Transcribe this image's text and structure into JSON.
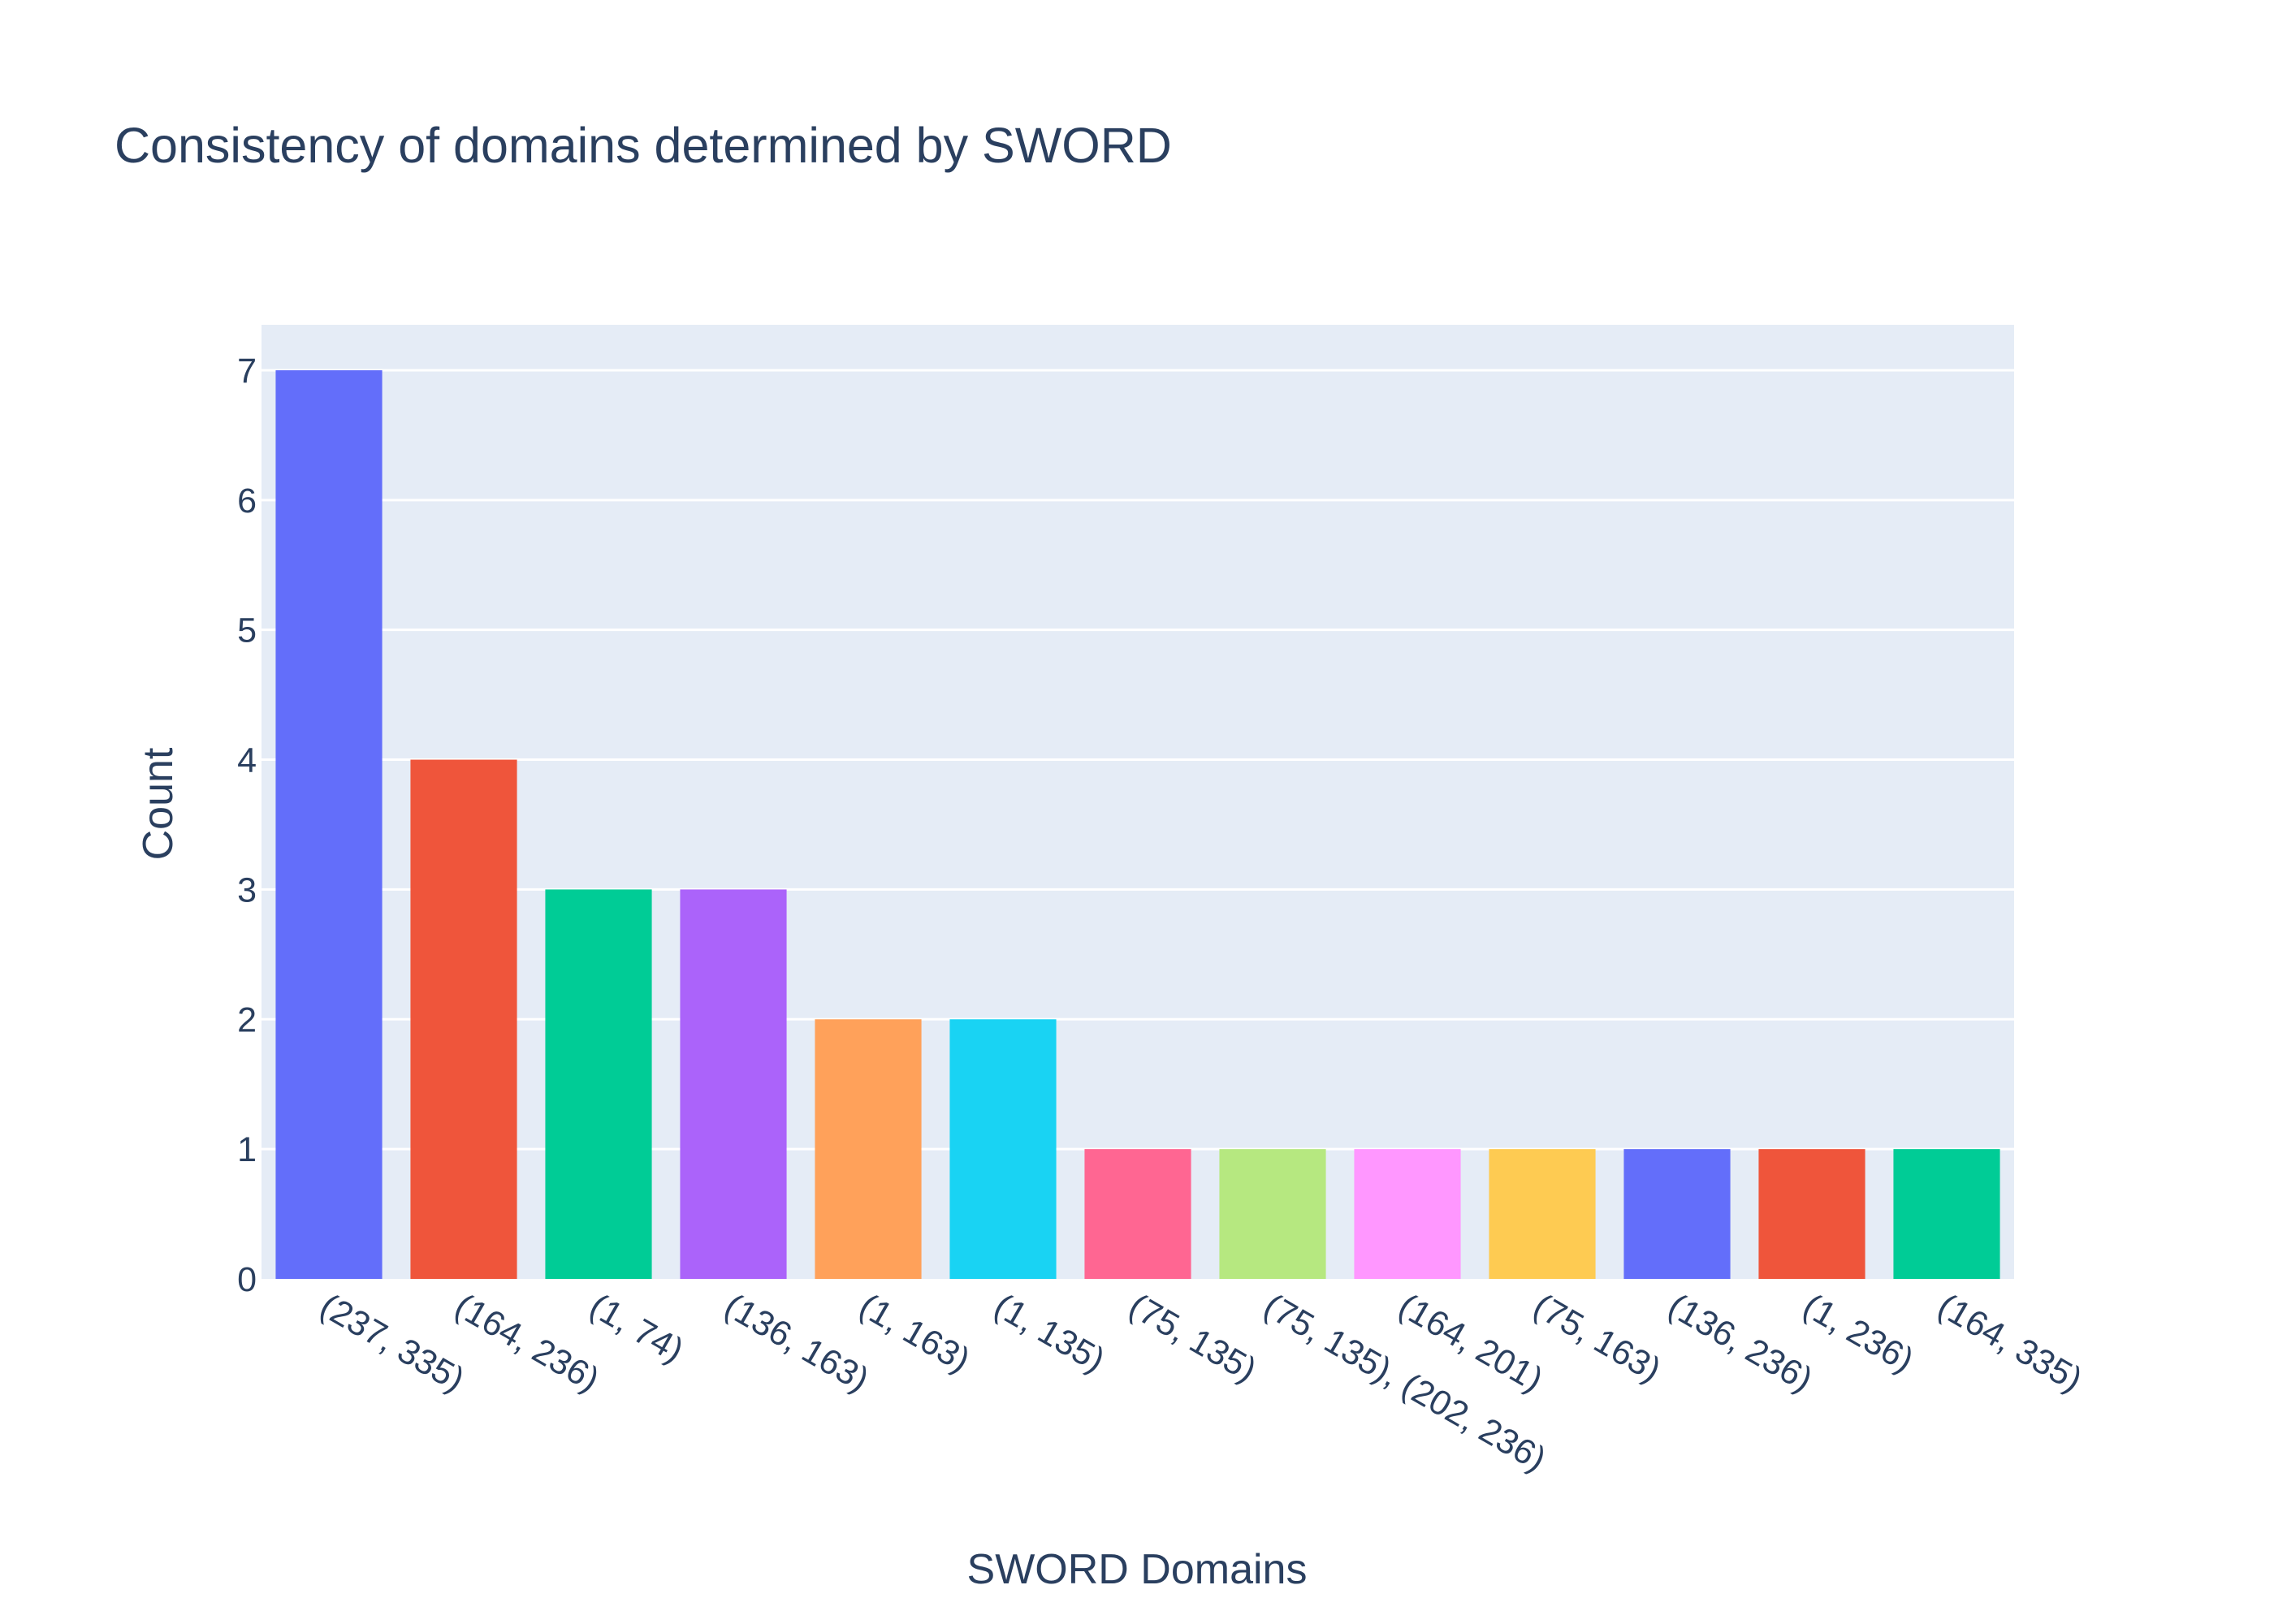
{
  "chart_data": {
    "type": "bar",
    "title": "Consistency of domains determined by SWORD",
    "xlabel": "SWORD Domains",
    "ylabel": "Count",
    "categories": [
      "(237, 335)",
      "(164, 236)",
      "(1, 74)",
      "(136, 163)",
      "(1, 163)",
      "(1, 135)",
      "(75, 135)",
      "(75, 135), (202, 236)",
      "(164, 201)",
      "(75, 163)",
      "(136, 236)",
      "(1, 236)",
      "(164, 335)"
    ],
    "values": [
      7,
      4,
      3,
      3,
      2,
      2,
      1,
      1,
      1,
      1,
      1,
      1,
      1
    ],
    "colors": [
      "#636efa",
      "#ef553b",
      "#00cc96",
      "#ab63fa",
      "#ffa15a",
      "#19d3f3",
      "#ff6692",
      "#b6e880",
      "#ff97ff",
      "#fecb52",
      "#636efa",
      "#ef553b",
      "#00cc96"
    ],
    "ylim": [
      0,
      7.35
    ],
    "yticks": [
      0,
      1,
      2,
      3,
      4,
      5,
      6,
      7
    ],
    "grid": true,
    "legend": "none",
    "plot_bgcolor": "#e5ecf6",
    "gridcolor": "#ffffff",
    "text_color": "#2a3f5f"
  }
}
